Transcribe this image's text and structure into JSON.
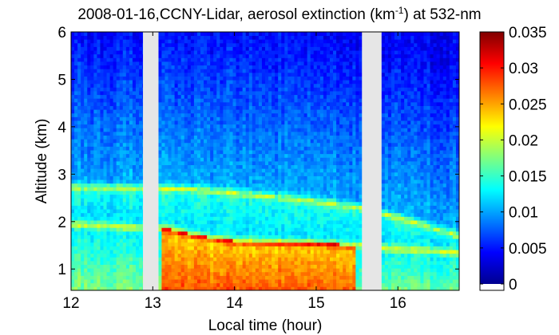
{
  "chart_data": {
    "type": "heatmap",
    "title_main": "2008-01-16,CCNY-Lidar, aerosol extinction (km",
    "title_sup": "-1",
    "title_end": ") at 532-nm",
    "xlabel": "Local time (hour)",
    "ylabel": "Altitude (km)",
    "xlim": [
      12.0,
      16.75
    ],
    "ylim": [
      0.55,
      6.0
    ],
    "xticks": [
      "12",
      "13",
      "14",
      "15",
      "16"
    ],
    "yticks": [
      "1",
      "2",
      "3",
      "4",
      "5",
      "6"
    ],
    "colorbar": {
      "range": [
        0,
        0.035
      ],
      "ticks": [
        "0",
        "0.005",
        "0.01",
        "0.015",
        "0.02",
        "0.025",
        "0.03",
        "0.035"
      ]
    },
    "colormap": "jet",
    "missing_color": "#e6e6e6",
    "data_gaps": [
      [
        12.88,
        13.07
      ],
      [
        15.56,
        15.8
      ]
    ],
    "layers": [
      {
        "name": "residual layer top",
        "x": [
          12.0,
          13.5,
          14.0,
          15.0,
          15.55,
          15.8,
          16.3,
          16.75
        ],
        "y": [
          2.75,
          2.7,
          2.62,
          2.45,
          2.3,
          2.2,
          1.95,
          1.72
        ]
      },
      {
        "name": "boundary layer top",
        "x": [
          12.0,
          13.2,
          13.5,
          14.0,
          15.0,
          15.55,
          15.8,
          16.3,
          16.75
        ],
        "y": [
          1.95,
          1.85,
          1.72,
          1.6,
          1.55,
          1.5,
          1.45,
          1.4,
          1.35
        ]
      }
    ],
    "high_extinction_region": {
      "x": [
        13.1,
        15.5
      ],
      "y": [
        0.6,
        1.6
      ],
      "max_value": 0.035
    }
  }
}
